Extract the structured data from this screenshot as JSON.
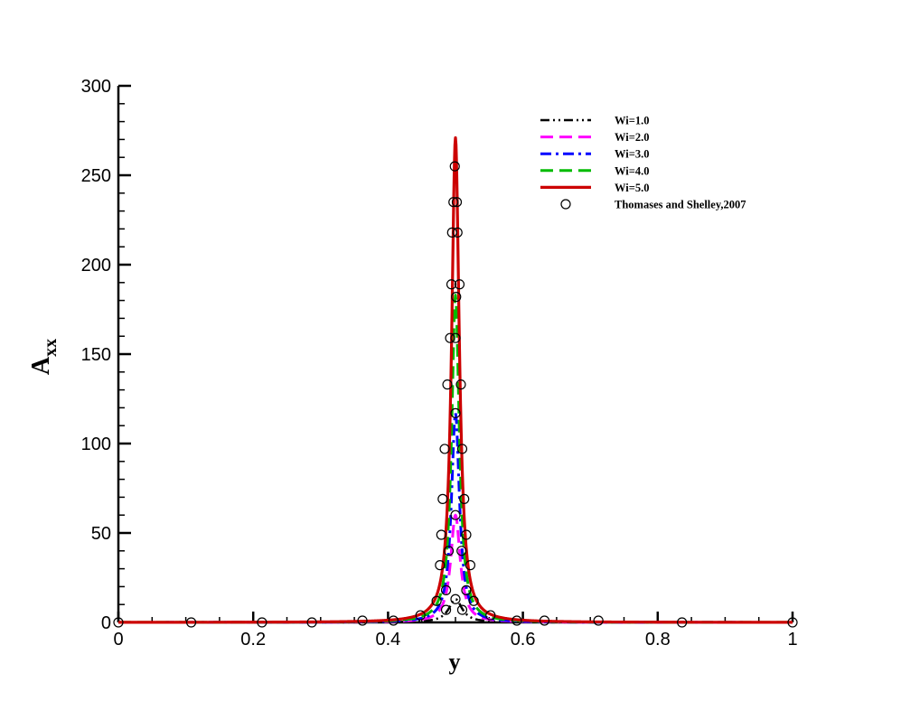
{
  "chart_data": {
    "type": "line",
    "title": "",
    "xlabel": "y",
    "ylabel_main": "A",
    "ylabel_sub": "xx",
    "xlim": [
      0,
      1
    ],
    "ylim": [
      0,
      300
    ],
    "x_ticks": [
      0,
      0.2,
      0.4,
      0.6,
      0.8,
      1
    ],
    "x_tick_labels": [
      "0",
      "0.2",
      "0.4",
      "0.6",
      "0.8",
      "1"
    ],
    "y_ticks": [
      0,
      50,
      100,
      150,
      200,
      250,
      300
    ],
    "y_tick_labels": [
      "0",
      "50",
      "100",
      "150",
      "200",
      "250",
      "300"
    ],
    "grid": false,
    "legend_position": "top-right",
    "series": [
      {
        "name": "Wi=1.0",
        "color": "#000000",
        "style": "dash-dot-dot",
        "peak": 13,
        "width": 0.012
      },
      {
        "name": "Wi=2.0",
        "color": "#ff00ff",
        "style": "dash",
        "peak": 60,
        "width": 0.0085
      },
      {
        "name": "Wi=3.0",
        "color": "#0000ff",
        "style": "dash-dot",
        "peak": 117,
        "width": 0.0072
      },
      {
        "name": "Wi=4.0",
        "color": "#00bb00",
        "style": "dash",
        "peak": 183,
        "width": 0.0068
      },
      {
        "name": "Wi=5.0",
        "color": "#cc0000",
        "style": "solid",
        "peak": 271,
        "width": 0.0068
      }
    ],
    "reference": {
      "name": "Thomases and Shelley,2007",
      "marker": "open-circle",
      "points": [
        {
          "x": 0.0,
          "y": 0
        },
        {
          "x": 0.108,
          "y": 0
        },
        {
          "x": 0.213,
          "y": 0
        },
        {
          "x": 0.287,
          "y": 0
        },
        {
          "x": 0.362,
          "y": 1
        },
        {
          "x": 0.408,
          "y": 1
        },
        {
          "x": 0.448,
          "y": 4
        },
        {
          "x": 0.472,
          "y": 12
        },
        {
          "x": 0.477,
          "y": 32
        },
        {
          "x": 0.479,
          "y": 49
        },
        {
          "x": 0.481,
          "y": 69
        },
        {
          "x": 0.484,
          "y": 97
        },
        {
          "x": 0.488,
          "y": 133
        },
        {
          "x": 0.492,
          "y": 159
        },
        {
          "x": 0.494,
          "y": 189
        },
        {
          "x": 0.495,
          "y": 218
        },
        {
          "x": 0.497,
          "y": 235
        },
        {
          "x": 0.499,
          "y": 255
        },
        {
          "x": 0.501,
          "y": 182
        },
        {
          "x": 0.5,
          "y": 159
        },
        {
          "x": 0.5,
          "y": 117
        },
        {
          "x": 0.5,
          "y": 60
        },
        {
          "x": 0.5,
          "y": 13
        },
        {
          "x": 0.49,
          "y": 40
        },
        {
          "x": 0.486,
          "y": 7
        },
        {
          "x": 0.486,
          "y": 18
        },
        {
          "x": 0.502,
          "y": 235
        },
        {
          "x": 0.503,
          "y": 218
        },
        {
          "x": 0.506,
          "y": 189
        },
        {
          "x": 0.508,
          "y": 133
        },
        {
          "x": 0.51,
          "y": 97
        },
        {
          "x": 0.513,
          "y": 69
        },
        {
          "x": 0.516,
          "y": 49
        },
        {
          "x": 0.522,
          "y": 32
        },
        {
          "x": 0.509,
          "y": 40
        },
        {
          "x": 0.516,
          "y": 18
        },
        {
          "x": 0.51,
          "y": 7
        },
        {
          "x": 0.527,
          "y": 12
        },
        {
          "x": 0.552,
          "y": 4
        },
        {
          "x": 0.591,
          "y": 1
        },
        {
          "x": 0.632,
          "y": 1
        },
        {
          "x": 0.712,
          "y": 1
        },
        {
          "x": 0.836,
          "y": 0
        },
        {
          "x": 1.0,
          "y": 0
        }
      ]
    }
  }
}
